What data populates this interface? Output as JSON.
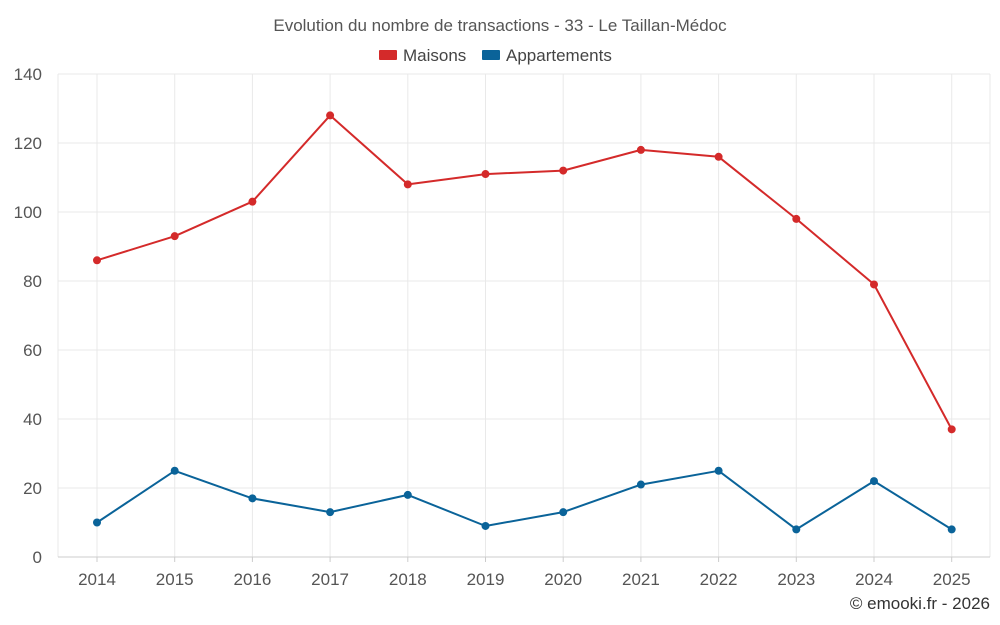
{
  "chart_data": {
    "type": "line",
    "title": "Evolution du nombre de transactions - 33 - Le Taillan-Médoc",
    "xlabel": "",
    "ylabel": "",
    "categories": [
      "2014",
      "2015",
      "2016",
      "2017",
      "2018",
      "2019",
      "2020",
      "2021",
      "2022",
      "2023",
      "2024",
      "2025"
    ],
    "ylim": [
      0,
      140
    ],
    "yticks": [
      0,
      20,
      40,
      60,
      80,
      100,
      120,
      140
    ],
    "grid": true,
    "legend_position": "top-center",
    "series": [
      {
        "name": "Maisons",
        "color": "#d42a2a",
        "values": [
          86,
          93,
          103,
          128,
          108,
          111,
          112,
          118,
          116,
          98,
          79,
          37
        ]
      },
      {
        "name": "Appartements",
        "color": "#0a6399",
        "values": [
          10,
          25,
          17,
          13,
          18,
          9,
          13,
          21,
          25,
          8,
          22,
          8
        ]
      }
    ]
  },
  "credit": "© emooki.fr - 2026"
}
